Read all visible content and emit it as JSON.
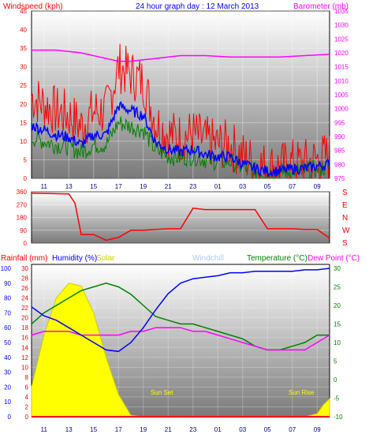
{
  "header": {
    "title": "24 hour graph day : 12 March 2013",
    "left_label": "Windspeed (kph)",
    "right_label": "Barometer (mb)"
  },
  "colors": {
    "wind_gust": "#ff0000",
    "wind_avg": "#0000ff",
    "wind_min": "#008000",
    "barometer": "#ff00ff",
    "direction": "#ff0000",
    "rainfall": "#ff0000",
    "humidity": "#0000ff",
    "solar": "#ffff00",
    "solar_label": "#cccc00",
    "windchill": "#aaccff",
    "temperature": "#008000",
    "dewpoint": "#ff00ff"
  },
  "time_ticks": [
    "11",
    "13",
    "15",
    "17",
    "19",
    "21",
    "23",
    "01",
    "03",
    "05",
    "07",
    "09"
  ],
  "panel_top": {
    "wind_ticks": [
      "0",
      "5",
      "10",
      "15",
      "20",
      "25",
      "30",
      "35",
      "40",
      "45"
    ],
    "baro_ticks": [
      "975",
      "980",
      "985",
      "990",
      "995",
      "1000",
      "1005",
      "1010",
      "1015",
      "1020",
      "1025",
      "1030",
      "1035"
    ]
  },
  "panel_mid": {
    "deg_ticks": [
      "0",
      "90",
      "180",
      "270",
      "360"
    ],
    "compass": [
      "S",
      "E",
      "N",
      "W",
      "S"
    ]
  },
  "panel_bot": {
    "labels": {
      "rainfall": "Rainfall (mm)",
      "humidity": "Humidity (%)",
      "solar": "Solar",
      "windchill": "Windchill",
      "temperature": "Temperature (°C)",
      "dewpoint": "Dew Point (°C)"
    },
    "humidity_ticks": [
      "0",
      "10",
      "20",
      "30",
      "40",
      "50",
      "60",
      "70",
      "80",
      "90",
      "100"
    ],
    "rain_ticks": [
      "0",
      "2",
      "4",
      "6",
      "8",
      "10",
      "12",
      "14",
      "16",
      "18",
      "20",
      "22",
      "24",
      "26",
      "28",
      "30"
    ],
    "temp_ticks": [
      "-10",
      "-5",
      "0",
      "5",
      "10",
      "15",
      "20",
      "25",
      "30"
    ],
    "sun_set": "Sun Set",
    "sun_rise": "Sun Rise"
  },
  "chart_data": [
    {
      "type": "line",
      "x_label_ticks": [
        "11",
        "13",
        "15",
        "17",
        "19",
        "21",
        "23",
        "01",
        "03",
        "05",
        "07",
        "09"
      ],
      "series": [
        {
          "name": "Windspeed (kph)",
          "axis": "left",
          "x": [
            10,
            11,
            12,
            13,
            14,
            15,
            16,
            17,
            18,
            19,
            20,
            21,
            22,
            23,
            24,
            25,
            26,
            27,
            28,
            29,
            30,
            31,
            32,
            33,
            34
          ],
          "values": [
            22,
            20,
            18,
            17,
            14,
            18,
            18,
            30,
            28,
            26,
            15,
            12,
            11,
            12,
            10,
            9,
            9,
            6,
            4,
            3,
            3,
            4,
            4,
            5,
            6
          ]
        },
        {
          "name": "Barometer (mb)",
          "axis": "right",
          "x": [
            10,
            12,
            14,
            16,
            17,
            18,
            19,
            20,
            21,
            22,
            24,
            26,
            28,
            30,
            32,
            34
          ],
          "values": [
            1021,
            1021,
            1020,
            1018,
            1017,
            1017,
            1017.5,
            1018,
            1018.5,
            1019,
            1019,
            1018.5,
            1018.5,
            1018.5,
            1019,
            1019.5
          ]
        }
      ],
      "ylim_left": [
        0,
        45
      ],
      "ylim_right": [
        975,
        1035
      ]
    },
    {
      "type": "line",
      "series": [
        {
          "name": "Wind Direction",
          "x": [
            10,
            13,
            13.5,
            14,
            15,
            16,
            17,
            18,
            19,
            20,
            21,
            22,
            23,
            24,
            25,
            26,
            27,
            28,
            29,
            30,
            31,
            32,
            33,
            34
          ],
          "values": [
            350,
            345,
            280,
            60,
            60,
            20,
            40,
            90,
            90,
            95,
            100,
            100,
            245,
            235,
            235,
            235,
            235,
            235,
            100,
            100,
            100,
            95,
            95,
            35
          ]
        }
      ],
      "ylim": [
        0,
        360
      ]
    },
    {
      "type": "line",
      "series": [
        {
          "name": "Humidity (%)",
          "axis": "humidity",
          "x": [
            10,
            11,
            12,
            13,
            14,
            15,
            16,
            17,
            18,
            19,
            20,
            21,
            22,
            23,
            24,
            25,
            26,
            27,
            28,
            29,
            30,
            31,
            32,
            33,
            34
          ],
          "values": [
            74,
            68,
            65,
            60,
            55,
            50,
            45,
            44,
            50,
            60,
            72,
            83,
            90,
            93,
            94,
            95,
            97,
            97,
            98,
            98,
            98,
            98,
            99,
            99,
            100
          ]
        },
        {
          "name": "Solar",
          "axis": "solar",
          "x": [
            10,
            11,
            12,
            13,
            14,
            15,
            16,
            17,
            18,
            19,
            20,
            31,
            32,
            33,
            33.5,
            34
          ],
          "values": [
            200,
            550,
            800,
            900,
            880,
            700,
            400,
            150,
            10,
            0,
            0,
            0,
            0,
            20,
            80,
            120
          ]
        },
        {
          "name": "Temperature (°C)",
          "axis": "temp",
          "x": [
            10,
            11,
            12,
            13,
            14,
            15,
            16,
            17,
            18,
            19,
            20,
            21,
            22,
            23,
            24,
            25,
            26,
            27,
            28,
            29,
            30,
            31,
            32,
            33,
            34
          ],
          "values": [
            15,
            18,
            20,
            22,
            24,
            25,
            26,
            25,
            23,
            20,
            17,
            16,
            15,
            15,
            14,
            13,
            12,
            11,
            9,
            8,
            8,
            9,
            10,
            12,
            12
          ]
        },
        {
          "name": "Dew Point (°C)",
          "axis": "temp",
          "x": [
            10,
            11,
            12,
            13,
            14,
            15,
            16,
            17,
            18,
            19,
            20,
            21,
            22,
            23,
            24,
            25,
            26,
            27,
            28,
            29,
            30,
            31,
            32,
            33,
            34
          ],
          "values": [
            12,
            13,
            13,
            13,
            12,
            12,
            12,
            12,
            13,
            13,
            14,
            14,
            14,
            13,
            13,
            12,
            11,
            10,
            9,
            8,
            8,
            8,
            8,
            10,
            12
          ]
        },
        {
          "name": "Rainfall (mm)",
          "axis": "rain",
          "x": [
            10,
            34
          ],
          "values": [
            0,
            0
          ]
        }
      ],
      "ylim_humidity": [
        0,
        100
      ],
      "ylim_rain": [
        0,
        30
      ],
      "ylim_temp": [
        -10,
        30
      ],
      "annotations": [
        "Sun Set",
        "Sun Rise"
      ]
    }
  ]
}
